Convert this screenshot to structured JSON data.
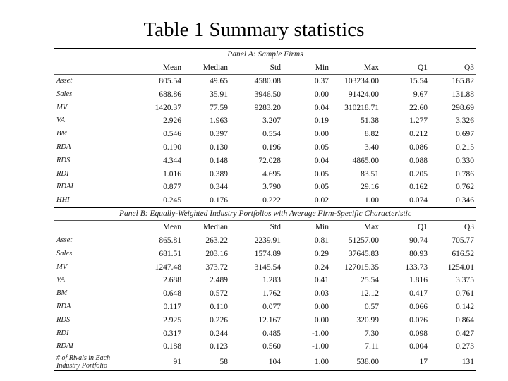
{
  "title": "Table 1 Summary statistics",
  "columns": [
    "Mean",
    "Median",
    "Std",
    "Min",
    "Max",
    "Q1",
    "Q3"
  ],
  "panel_a": {
    "title": "Panel A: Sample Firms",
    "rows": [
      {
        "label": "Asset",
        "values": [
          "805.54",
          "49.65",
          "4580.08",
          "0.37",
          "103234.00",
          "15.54",
          "165.82"
        ]
      },
      {
        "label": "Sales",
        "values": [
          "688.86",
          "35.91",
          "3946.50",
          "0.00",
          "91424.00",
          "9.67",
          "131.88"
        ]
      },
      {
        "label": "MV",
        "values": [
          "1420.37",
          "77.59",
          "9283.20",
          "0.04",
          "310218.71",
          "22.60",
          "298.69"
        ]
      },
      {
        "label": "VA",
        "values": [
          "2.926",
          "1.963",
          "3.207",
          "0.19",
          "51.38",
          "1.277",
          "3.326"
        ]
      },
      {
        "label": "BM",
        "values": [
          "0.546",
          "0.397",
          "0.554",
          "0.00",
          "8.82",
          "0.212",
          "0.697"
        ]
      },
      {
        "label": "RDA",
        "values": [
          "0.190",
          "0.130",
          "0.196",
          "0.05",
          "3.40",
          "0.086",
          "0.215"
        ]
      },
      {
        "label": "RDS",
        "values": [
          "4.344",
          "0.148",
          "72.028",
          "0.04",
          "4865.00",
          "0.088",
          "0.330"
        ]
      },
      {
        "label": "RDI",
        "values": [
          "1.016",
          "0.389",
          "4.695",
          "0.05",
          "83.51",
          "0.205",
          "0.786"
        ]
      },
      {
        "label": "RDAI",
        "values": [
          "0.877",
          "0.344",
          "3.790",
          "0.05",
          "29.16",
          "0.162",
          "0.762"
        ]
      },
      {
        "label": "HHI",
        "values": [
          "0.245",
          "0.176",
          "0.222",
          "0.02",
          "1.00",
          "0.074",
          "0.346"
        ]
      }
    ]
  },
  "panel_b": {
    "title": "Panel B: Equally-Weighted Industry Portfolios with Average Firm-Specific Characteristic",
    "rows": [
      {
        "label": "Asset",
        "values": [
          "865.81",
          "263.22",
          "2239.91",
          "0.81",
          "51257.00",
          "90.74",
          "705.77"
        ]
      },
      {
        "label": "Sales",
        "values": [
          "681.51",
          "203.16",
          "1574.89",
          "0.29",
          "37645.83",
          "80.93",
          "616.52"
        ]
      },
      {
        "label": "MV",
        "values": [
          "1247.48",
          "373.72",
          "3145.54",
          "0.24",
          "127015.35",
          "133.73",
          "1254.01"
        ]
      },
      {
        "label": "VA",
        "values": [
          "2.688",
          "2.489",
          "1.283",
          "0.41",
          "25.54",
          "1.816",
          "3.375"
        ]
      },
      {
        "label": "BM",
        "values": [
          "0.648",
          "0.572",
          "1.762",
          "0.03",
          "12.12",
          "0.417",
          "0.761"
        ]
      },
      {
        "label": "RDA",
        "values": [
          "0.117",
          "0.110",
          "0.077",
          "0.00",
          "0.57",
          "0.066",
          "0.142"
        ]
      },
      {
        "label": "RDS",
        "values": [
          "2.925",
          "0.226",
          "12.167",
          "0.00",
          "320.99",
          "0.076",
          "0.864"
        ]
      },
      {
        "label": "RDI",
        "values": [
          "0.317",
          "0.244",
          "0.485",
          "-1.00",
          "7.30",
          "0.098",
          "0.427"
        ]
      },
      {
        "label": "RDAI",
        "values": [
          "0.188",
          "0.123",
          "0.560",
          "-1.00",
          "7.11",
          "0.004",
          "0.273"
        ]
      }
    ],
    "last_row": {
      "label_line1": "# of Rivals in Each",
      "label_line2": "Industry Portfolio",
      "values": [
        "91",
        "58",
        "104",
        "1.00",
        "538.00",
        "17",
        "131"
      ]
    }
  }
}
